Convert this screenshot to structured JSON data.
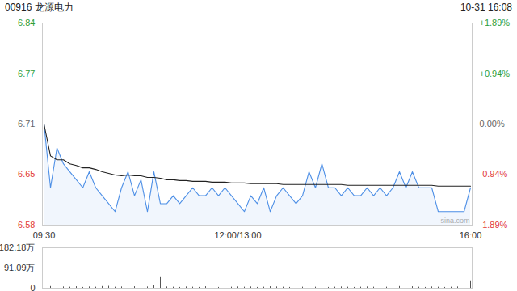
{
  "chart_data": [
    {
      "type": "line",
      "title": "00916 龙源电力",
      "annotations": [
        "10-31 16:08",
        "sina.com"
      ],
      "categories": [
        "09:30",
        null,
        null,
        null,
        null,
        null,
        null,
        null,
        null,
        null,
        null,
        null,
        null,
        null,
        null,
        null,
        null,
        null,
        null,
        null,
        null,
        null,
        null,
        null,
        null,
        null,
        null,
        null,
        null,
        null,
        "12:00/13:00",
        null,
        null,
        null,
        null,
        null,
        null,
        null,
        null,
        null,
        null,
        null,
        null,
        null,
        null,
        null,
        null,
        null,
        null,
        null,
        null,
        null,
        null,
        null,
        null,
        null,
        null,
        null,
        null,
        null,
        null,
        null,
        null,
        null,
        null,
        null,
        "16:00"
      ],
      "series": [
        {
          "color": "#4d8fe6",
          "line_style": "solid",
          "values": [
            6.71,
            6.63,
            6.68,
            6.66,
            6.65,
            6.64,
            6.63,
            6.65,
            6.63,
            6.62,
            6.61,
            6.6,
            6.63,
            6.65,
            6.62,
            6.64,
            6.6,
            6.65,
            6.61,
            6.61,
            6.62,
            6.61,
            6.62,
            6.63,
            6.62,
            6.62,
            6.63,
            6.62,
            6.63,
            6.62,
            6.61,
            6.6,
            6.62,
            6.61,
            6.63,
            6.6,
            6.62,
            6.63,
            6.62,
            6.61,
            6.62,
            6.65,
            6.63,
            6.66,
            6.63,
            6.63,
            6.62,
            6.63,
            6.62,
            6.62,
            6.63,
            6.62,
            6.63,
            6.62,
            6.63,
            6.65,
            6.63,
            6.65,
            6.63,
            6.63,
            6.63,
            6.6,
            6.6,
            6.6,
            6.6,
            6.6,
            6.63
          ]
        },
        {
          "color": "#222222",
          "line_style": "solid",
          "values": [
            6.71,
            6.67,
            6.665,
            6.665,
            6.66,
            6.658,
            6.655,
            6.655,
            6.653,
            6.65,
            6.648,
            6.646,
            6.645,
            6.646,
            6.645,
            6.645,
            6.643,
            6.643,
            6.642,
            6.64,
            6.64,
            6.639,
            6.639,
            6.638,
            6.638,
            6.638,
            6.637,
            6.637,
            6.637,
            6.636,
            6.636,
            6.636,
            6.635,
            6.635,
            6.635,
            6.635,
            6.635,
            6.634,
            6.634,
            6.634,
            6.634,
            6.634,
            6.634,
            6.634,
            6.634,
            6.634,
            6.634,
            6.633,
            6.633,
            6.633,
            6.633,
            6.633,
            6.633,
            6.633,
            6.633,
            6.633,
            6.633,
            6.633,
            6.633,
            6.633,
            6.633,
            6.632,
            6.632,
            6.632,
            6.632,
            6.632,
            6.632
          ]
        }
      ],
      "prev_close": 6.71,
      "ylim": [
        6.583,
        6.837
      ],
      "yticks": [
        {
          "value": 6.837,
          "label": "6.84"
        },
        {
          "value": 6.773,
          "label": "6.77"
        },
        {
          "value": 6.71,
          "label": "6.71"
        },
        {
          "value": 6.647,
          "label": "6.65"
        },
        {
          "value": 6.583,
          "label": "6.58"
        }
      ],
      "y2lim": [
        -1.89,
        1.89
      ],
      "y2ticks": [
        {
          "value": 1.89,
          "label": "+1.89%"
        },
        {
          "value": 0.94,
          "label": "+0.94%"
        },
        {
          "value": 0,
          "label": "0.00%"
        },
        {
          "value": -0.94,
          "label": "-0.94%"
        },
        {
          "value": -1.89,
          "label": "-1.89%"
        }
      ]
    },
    {
      "type": "bar",
      "categories": [
        "09:30",
        null,
        null,
        null,
        null,
        null,
        null,
        null,
        null,
        null,
        null,
        null,
        null,
        null,
        null,
        null,
        null,
        null,
        null,
        null,
        null,
        null,
        null,
        null,
        null,
        null,
        null,
        null,
        null,
        null,
        "12:00/13:00",
        null,
        null,
        null,
        null,
        null,
        null,
        null,
        null,
        null,
        null,
        null,
        null,
        null,
        null,
        null,
        null,
        null,
        null,
        null,
        null,
        null,
        null,
        null,
        null,
        null,
        null,
        null,
        null,
        null,
        null,
        null,
        null,
        null,
        null,
        null,
        "16:00"
      ],
      "values": [
        12,
        8,
        10,
        6,
        5,
        7,
        4,
        6,
        5,
        8,
        9,
        5,
        6,
        4,
        7,
        5,
        6,
        12,
        48,
        6,
        5,
        4,
        6,
        5,
        4,
        7,
        5,
        4,
        6,
        5,
        6,
        5,
        6,
        4,
        5,
        7,
        6,
        5,
        4,
        6,
        5,
        8,
        5,
        6,
        4,
        5,
        6,
        5,
        4,
        5,
        6,
        5,
        4,
        5,
        6,
        8,
        5,
        7,
        5,
        4,
        6,
        5,
        4,
        5,
        6,
        7,
        30
      ],
      "color": "#555555",
      "ylim": [
        0,
        182.18
      ],
      "yticks": [
        0,
        {
          "value": 91.09,
          "label": "91.09万"
        },
        {
          "value": 182.18,
          "label": "182.18万"
        }
      ],
      "tick_labels": "y"
    }
  ]
}
